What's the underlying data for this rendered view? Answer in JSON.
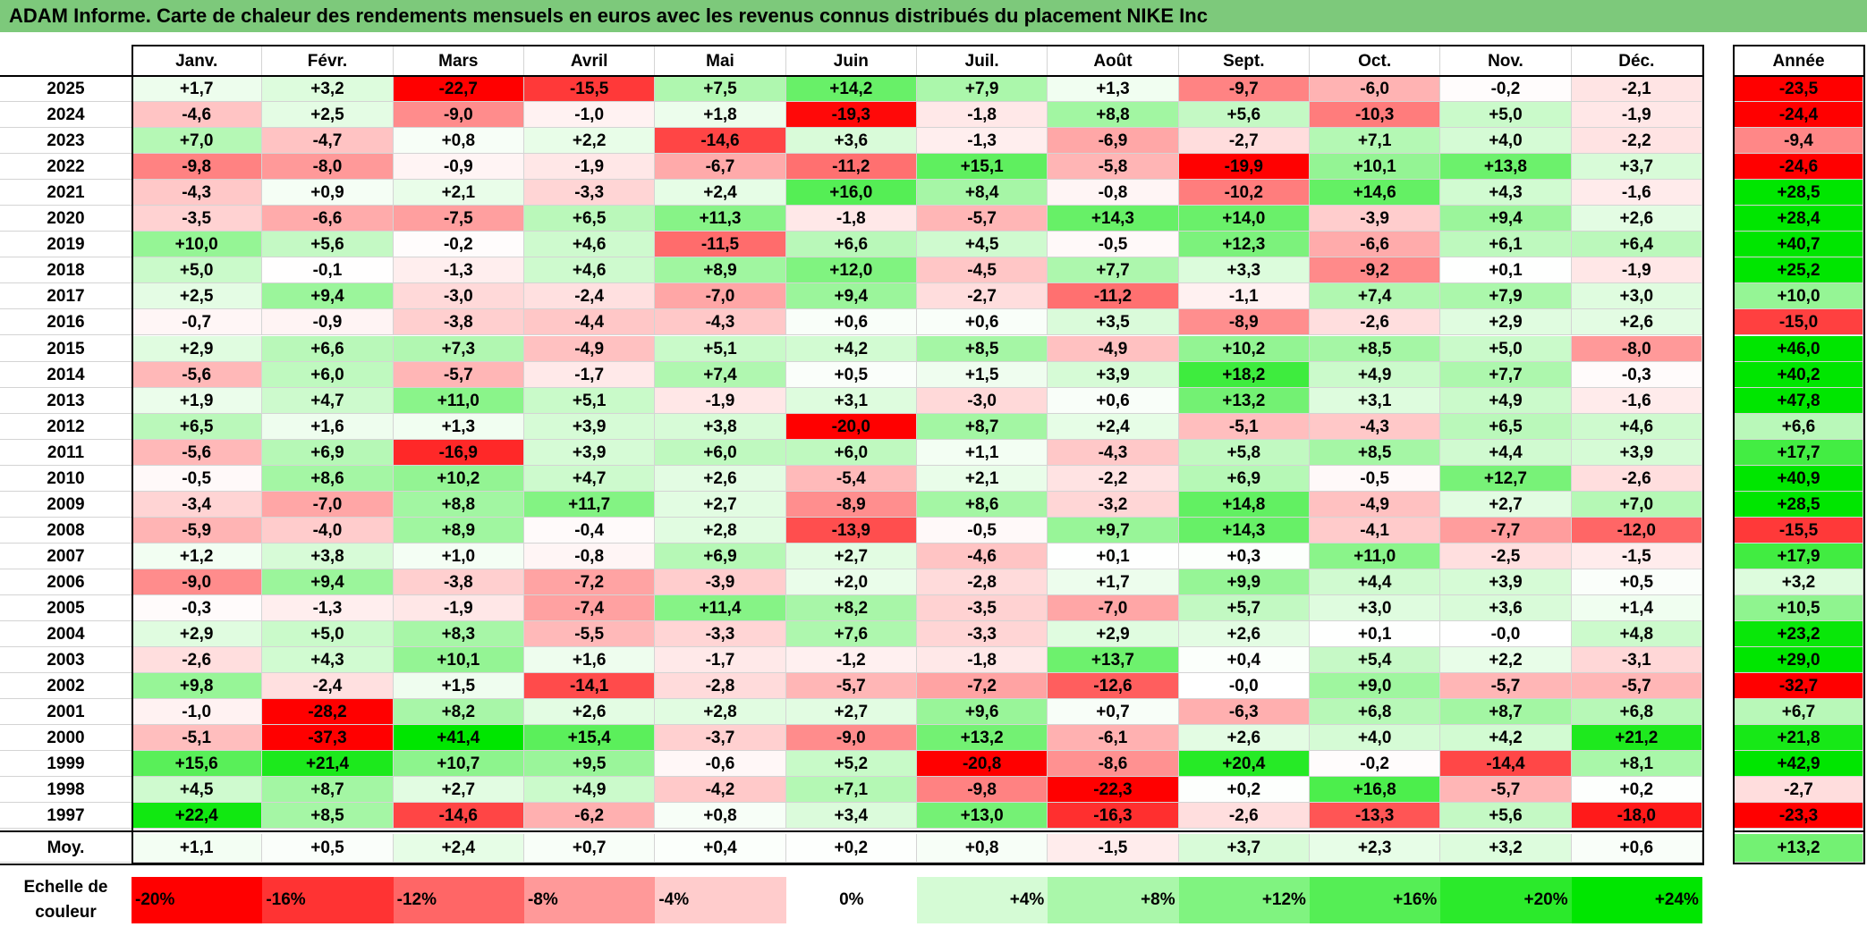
{
  "title": "ADAM Informe. Carte de chaleur des rendements mensuels en euros avec les revenus connus distribués du placement NIKE Inc",
  "colors": {
    "title_bg": "#7dc97b",
    "neg_max": "#ff0000",
    "pos_max": "#00e600",
    "neutral": "#ffffff"
  },
  "chart_data": {
    "type": "heatmap",
    "title": "ADAM Informe. Carte de chaleur des rendements mensuels en euros avec les revenus connus distribués du placement NIKE Inc",
    "columns": [
      "Janv.",
      "Févr.",
      "Mars",
      "Avril",
      "Mai",
      "Juin",
      "Juil.",
      "Août",
      "Sept.",
      "Oct.",
      "Nov.",
      "Déc."
    ],
    "year_column_label": "Année",
    "rows": [
      {
        "year": "2025",
        "values": [
          "+1,7",
          "+3,2",
          "-22,7",
          "-15,5",
          "+7,5",
          "+14,2",
          "+7,9",
          "+1,3",
          "-9,7",
          "-6,0",
          "-0,2",
          "-2,1"
        ],
        "annual": "-23,5"
      },
      {
        "year": "2024",
        "values": [
          "-4,6",
          "+2,5",
          "-9,0",
          "-1,0",
          "+1,8",
          "-19,3",
          "-1,8",
          "+8,8",
          "+5,6",
          "-10,3",
          "+5,0",
          "-1,9"
        ],
        "annual": "-24,4"
      },
      {
        "year": "2023",
        "values": [
          "+7,0",
          "-4,7",
          "+0,8",
          "+2,2",
          "-14,6",
          "+3,6",
          "-1,3",
          "-6,9",
          "-2,7",
          "+7,1",
          "+4,0",
          "-2,2"
        ],
        "annual": "-9,4"
      },
      {
        "year": "2022",
        "values": [
          "-9,8",
          "-8,0",
          "-0,9",
          "-1,9",
          "-6,7",
          "-11,2",
          "+15,1",
          "-5,8",
          "-19,9",
          "+10,1",
          "+13,8",
          "+3,7"
        ],
        "annual": "-24,6"
      },
      {
        "year": "2021",
        "values": [
          "-4,3",
          "+0,9",
          "+2,1",
          "-3,3",
          "+2,4",
          "+16,0",
          "+8,4",
          "-0,8",
          "-10,2",
          "+14,6",
          "+4,3",
          "-1,6"
        ],
        "annual": "+28,5"
      },
      {
        "year": "2020",
        "values": [
          "-3,5",
          "-6,6",
          "-7,5",
          "+6,5",
          "+11,3",
          "-1,8",
          "-5,7",
          "+14,3",
          "+14,0",
          "-3,9",
          "+9,4",
          "+2,6"
        ],
        "annual": "+28,4"
      },
      {
        "year": "2019",
        "values": [
          "+10,0",
          "+5,6",
          "-0,2",
          "+4,6",
          "-11,5",
          "+6,6",
          "+4,5",
          "-0,5",
          "+12,3",
          "-6,6",
          "+6,1",
          "+6,4"
        ],
        "annual": "+40,7"
      },
      {
        "year": "2018",
        "values": [
          "+5,0",
          "-0,1",
          "-1,3",
          "+4,6",
          "+8,9",
          "+12,0",
          "-4,5",
          "+7,7",
          "+3,3",
          "-9,2",
          "+0,1",
          "-1,9"
        ],
        "annual": "+25,2"
      },
      {
        "year": "2017",
        "values": [
          "+2,5",
          "+9,4",
          "-3,0",
          "-2,4",
          "-7,0",
          "+9,4",
          "-2,7",
          "-11,2",
          "-1,1",
          "+7,4",
          "+7,9",
          "+3,0"
        ],
        "annual": "+10,0"
      },
      {
        "year": "2016",
        "values": [
          "-0,7",
          "-0,9",
          "-3,8",
          "-4,4",
          "-4,3",
          "+0,6",
          "+0,6",
          "+3,5",
          "-8,9",
          "-2,6",
          "+2,9",
          "+2,6"
        ],
        "annual": "-15,0"
      },
      {
        "year": "2015",
        "values": [
          "+2,9",
          "+6,6",
          "+7,3",
          "-4,9",
          "+5,1",
          "+4,2",
          "+8,5",
          "-4,9",
          "+10,2",
          "+8,5",
          "+5,0",
          "-8,0"
        ],
        "annual": "+46,0"
      },
      {
        "year": "2014",
        "values": [
          "-5,6",
          "+6,0",
          "-5,7",
          "-1,7",
          "+7,4",
          "+0,5",
          "+1,5",
          "+3,9",
          "+18,2",
          "+4,9",
          "+7,7",
          "-0,3"
        ],
        "annual": "+40,2"
      },
      {
        "year": "2013",
        "values": [
          "+1,9",
          "+4,7",
          "+11,0",
          "+5,1",
          "-1,9",
          "+3,1",
          "-3,0",
          "+0,6",
          "+13,2",
          "+3,1",
          "+4,9",
          "-1,6"
        ],
        "annual": "+47,8"
      },
      {
        "year": "2012",
        "values": [
          "+6,5",
          "+1,6",
          "+1,3",
          "+3,9",
          "+3,8",
          "-20,0",
          "+8,7",
          "+2,4",
          "-5,1",
          "-4,3",
          "+6,5",
          "+4,6"
        ],
        "annual": "+6,6"
      },
      {
        "year": "2011",
        "values": [
          "-5,6",
          "+6,9",
          "-16,9",
          "+3,9",
          "+6,0",
          "+6,0",
          "+1,1",
          "-4,3",
          "+5,8",
          "+8,5",
          "+4,4",
          "+3,9"
        ],
        "annual": "+17,7"
      },
      {
        "year": "2010",
        "values": [
          "-0,5",
          "+8,6",
          "+10,2",
          "+4,7",
          "+2,6",
          "-5,4",
          "+2,1",
          "-2,2",
          "+6,9",
          "-0,5",
          "+12,7",
          "-2,6"
        ],
        "annual": "+40,9"
      },
      {
        "year": "2009",
        "values": [
          "-3,4",
          "-7,0",
          "+8,8",
          "+11,7",
          "+2,7",
          "-8,9",
          "+8,6",
          "-3,2",
          "+14,8",
          "-4,9",
          "+2,7",
          "+7,0"
        ],
        "annual": "+28,5"
      },
      {
        "year": "2008",
        "values": [
          "-5,9",
          "-4,0",
          "+8,9",
          "-0,4",
          "+2,8",
          "-13,9",
          "-0,5",
          "+9,7",
          "+14,3",
          "-4,1",
          "-7,7",
          "-12,0"
        ],
        "annual": "-15,5"
      },
      {
        "year": "2007",
        "values": [
          "+1,2",
          "+3,8",
          "+1,0",
          "-0,8",
          "+6,9",
          "+2,7",
          "-4,6",
          "+0,1",
          "+0,3",
          "+11,0",
          "-2,5",
          "-1,5"
        ],
        "annual": "+17,9"
      },
      {
        "year": "2006",
        "values": [
          "-9,0",
          "+9,4",
          "-3,8",
          "-7,2",
          "-3,9",
          "+2,0",
          "-2,8",
          "+1,7",
          "+9,9",
          "+4,4",
          "+3,9",
          "+0,5"
        ],
        "annual": "+3,2"
      },
      {
        "year": "2005",
        "values": [
          "-0,3",
          "-1,3",
          "-1,9",
          "-7,4",
          "+11,4",
          "+8,2",
          "-3,5",
          "-7,0",
          "+5,7",
          "+3,0",
          "+3,6",
          "+1,4"
        ],
        "annual": "+10,5"
      },
      {
        "year": "2004",
        "values": [
          "+2,9",
          "+5,0",
          "+8,3",
          "-5,5",
          "-3,3",
          "+7,6",
          "-3,3",
          "+2,9",
          "+2,6",
          "+0,1",
          "-0,0",
          "+4,8"
        ],
        "annual": "+23,2"
      },
      {
        "year": "2003",
        "values": [
          "-2,6",
          "+4,3",
          "+10,1",
          "+1,6",
          "-1,7",
          "-1,2",
          "-1,8",
          "+13,7",
          "+0,4",
          "+5,4",
          "+2,2",
          "-3,1"
        ],
        "annual": "+29,0"
      },
      {
        "year": "2002",
        "values": [
          "+9,8",
          "-2,4",
          "+1,5",
          "-14,1",
          "-2,8",
          "-5,7",
          "-7,2",
          "-12,6",
          "-0,0",
          "+9,0",
          "-5,7",
          "-5,7"
        ],
        "annual": "-32,7"
      },
      {
        "year": "2001",
        "values": [
          "-1,0",
          "-28,2",
          "+8,2",
          "+2,6",
          "+2,8",
          "+2,7",
          "+9,6",
          "+0,7",
          "-6,3",
          "+6,8",
          "+8,7",
          "+6,8"
        ],
        "annual": "+6,7"
      },
      {
        "year": "2000",
        "values": [
          "-5,1",
          "-37,3",
          "+41,4",
          "+15,4",
          "-3,7",
          "-9,0",
          "+13,2",
          "-6,1",
          "+2,6",
          "+4,0",
          "+4,2",
          "+21,2"
        ],
        "annual": "+21,8"
      },
      {
        "year": "1999",
        "values": [
          "+15,6",
          "+21,4",
          "+10,7",
          "+9,5",
          "-0,6",
          "+5,2",
          "-20,8",
          "-8,6",
          "+20,4",
          "-0,2",
          "-14,4",
          "+8,1"
        ],
        "annual": "+42,9"
      },
      {
        "year": "1998",
        "values": [
          "+4,5",
          "+8,7",
          "+2,7",
          "+4,9",
          "-4,2",
          "+7,1",
          "-9,8",
          "-22,3",
          "+0,2",
          "+16,8",
          "-5,7",
          "+0,2"
        ],
        "annual": "-2,7"
      },
      {
        "year": "1997",
        "values": [
          "+22,4",
          "+8,5",
          "-14,6",
          "-6,2",
          "+0,8",
          "+3,4",
          "+13,0",
          "-16,3",
          "-2,6",
          "-13,3",
          "+5,6",
          "-18,0"
        ],
        "annual": "-23,3"
      }
    ],
    "average": {
      "label": "Moy.",
      "values": [
        "+1,1",
        "+0,5",
        "+2,4",
        "+0,7",
        "+0,4",
        "+0,2",
        "+0,8",
        "-1,5",
        "+3,7",
        "+2,3",
        "+3,2",
        "+0,6"
      ],
      "annual": "+13,2"
    },
    "legend": {
      "label_line1": "Echelle de",
      "label_line2": "couleur",
      "stops": [
        "-20%",
        "-16%",
        "-12%",
        "-8%",
        "-4%",
        "0%",
        "+4%",
        "+8%",
        "+12%",
        "+16%",
        "+20%",
        "+24%"
      ]
    },
    "monthly_scale": [
      -20,
      24
    ],
    "annual_scale": [
      -20,
      24
    ]
  }
}
